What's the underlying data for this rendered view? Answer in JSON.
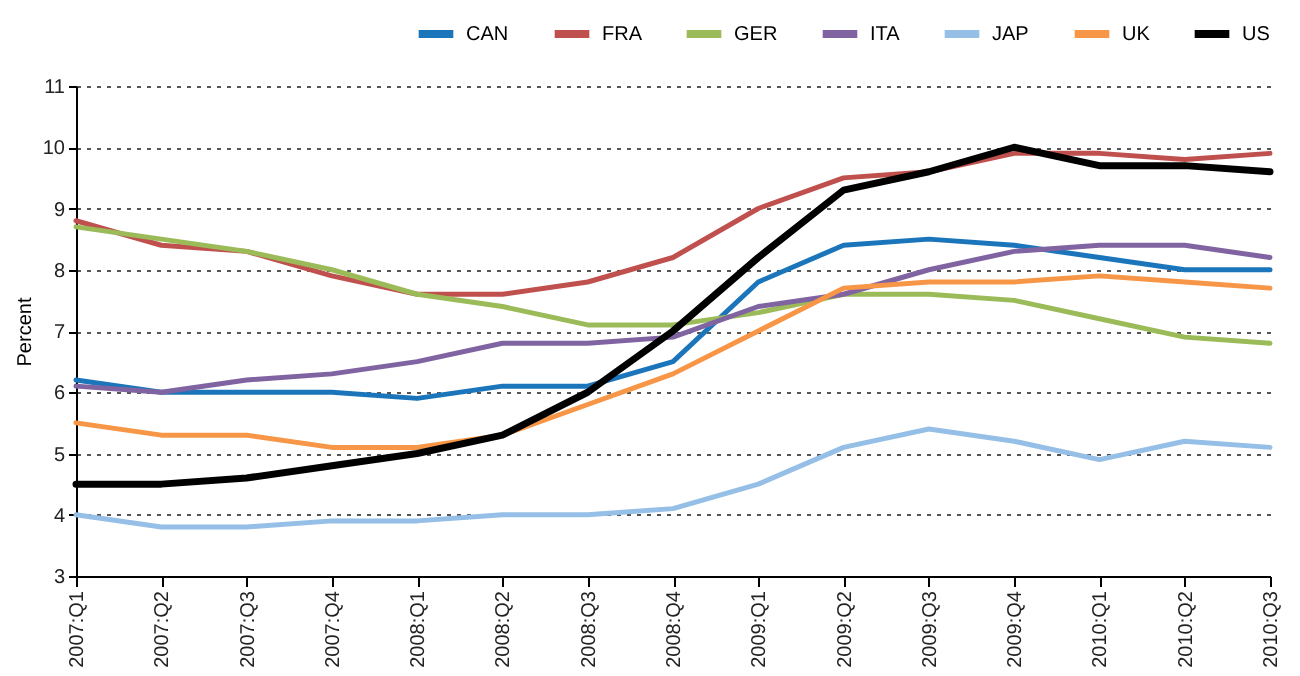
{
  "chart_data": {
    "type": "line",
    "ylabel": "Percent",
    "categories": [
      "2007:Q1",
      "2007:Q2",
      "2007:Q3",
      "2007:Q4",
      "2008:Q1",
      "2008:Q2",
      "2008:Q3",
      "2008:Q4",
      "2009:Q1",
      "2009:Q2",
      "2009:Q3",
      "2009:Q4",
      "2010:Q1",
      "2010:Q2",
      "2010:Q3"
    ],
    "series": [
      {
        "name": "CAN",
        "color": "#1b75bb",
        "values": [
          6.2,
          6.0,
          6.0,
          6.0,
          5.9,
          6.1,
          6.1,
          6.5,
          7.8,
          8.4,
          8.5,
          8.4,
          8.2,
          8.0,
          8.0
        ]
      },
      {
        "name": "FRA",
        "color": "#c0504d",
        "values": [
          8.8,
          8.4,
          8.3,
          7.9,
          7.6,
          7.6,
          7.8,
          8.2,
          9.0,
          9.5,
          9.6,
          9.9,
          9.9,
          9.8,
          9.9
        ]
      },
      {
        "name": "GER",
        "color": "#9bbb59",
        "values": [
          8.7,
          8.5,
          8.3,
          8.0,
          7.6,
          7.4,
          7.1,
          7.1,
          7.3,
          7.6,
          7.6,
          7.5,
          7.2,
          6.9,
          6.8
        ]
      },
      {
        "name": "ITA",
        "color": "#8064a2",
        "values": [
          6.1,
          6.0,
          6.2,
          6.3,
          6.5,
          6.8,
          6.8,
          6.9,
          7.4,
          7.6,
          8.0,
          8.3,
          8.4,
          8.4,
          8.2
        ]
      },
      {
        "name": "JAP",
        "color": "#95bfe6",
        "values": [
          4.0,
          3.8,
          3.8,
          3.9,
          3.9,
          4.0,
          4.0,
          4.1,
          4.5,
          5.1,
          5.4,
          5.2,
          4.9,
          5.2,
          5.1
        ]
      },
      {
        "name": "UK",
        "color": "#f79646",
        "values": [
          5.5,
          5.3,
          5.3,
          5.1,
          5.1,
          5.3,
          5.8,
          6.3,
          7.0,
          7.7,
          7.8,
          7.8,
          7.9,
          7.8,
          7.7
        ]
      },
      {
        "name": "US",
        "color": "#000000",
        "values": [
          4.5,
          4.5,
          4.6,
          4.8,
          5.0,
          5.3,
          6.0,
          7.0,
          8.2,
          9.3,
          9.6,
          10.0,
          9.7,
          9.7,
          9.6
        ]
      }
    ],
    "ylim": [
      3,
      11
    ],
    "yticks": [
      3,
      4,
      5,
      6,
      7,
      8,
      9,
      10,
      11
    ],
    "grid": "y",
    "legend": "top right",
    "marker": "none",
    "line_style": "solid"
  }
}
